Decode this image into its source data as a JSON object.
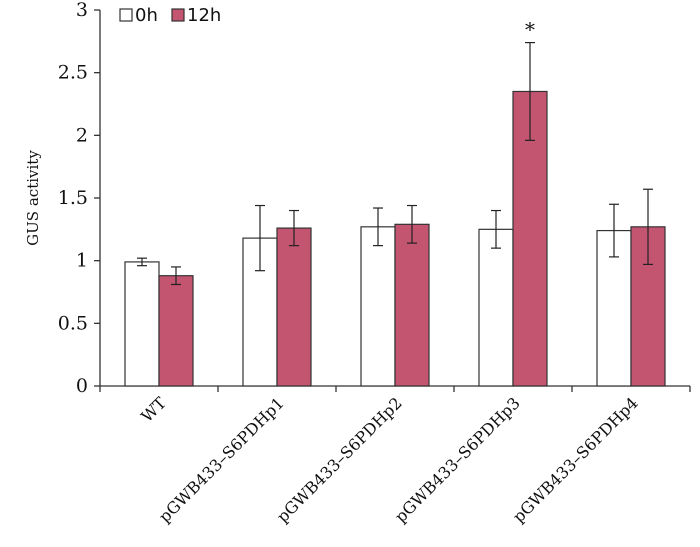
{
  "chart_data": {
    "type": "bar",
    "title": "",
    "xlabel": "",
    "ylabel": "GUS activity",
    "ylim": [
      0,
      3
    ],
    "yticks": [
      "0",
      "0.5",
      "1",
      "1.5",
      "2",
      "2.5",
      "3"
    ],
    "categories": [
      "WT",
      "pGWB433–S6PDHp1",
      "pGWB433–S6PDHp2",
      "pGWB433–S6PDHp3",
      "pGWB433–S6PDHp4"
    ],
    "series": [
      {
        "name": "0h",
        "color": "#ffffff",
        "values": [
          0.99,
          1.18,
          1.27,
          1.25,
          1.24
        ],
        "errors": [
          0.03,
          0.26,
          0.15,
          0.15,
          0.21
        ]
      },
      {
        "name": "12h",
        "color": "#c45570",
        "values": [
          0.88,
          1.26,
          1.29,
          2.35,
          1.27
        ],
        "errors": [
          0.07,
          0.14,
          0.15,
          0.39,
          0.3
        ]
      }
    ],
    "annotations": [
      {
        "text": "*",
        "category_index": 3,
        "series_index": 1
      }
    ],
    "legend": "top-left"
  }
}
